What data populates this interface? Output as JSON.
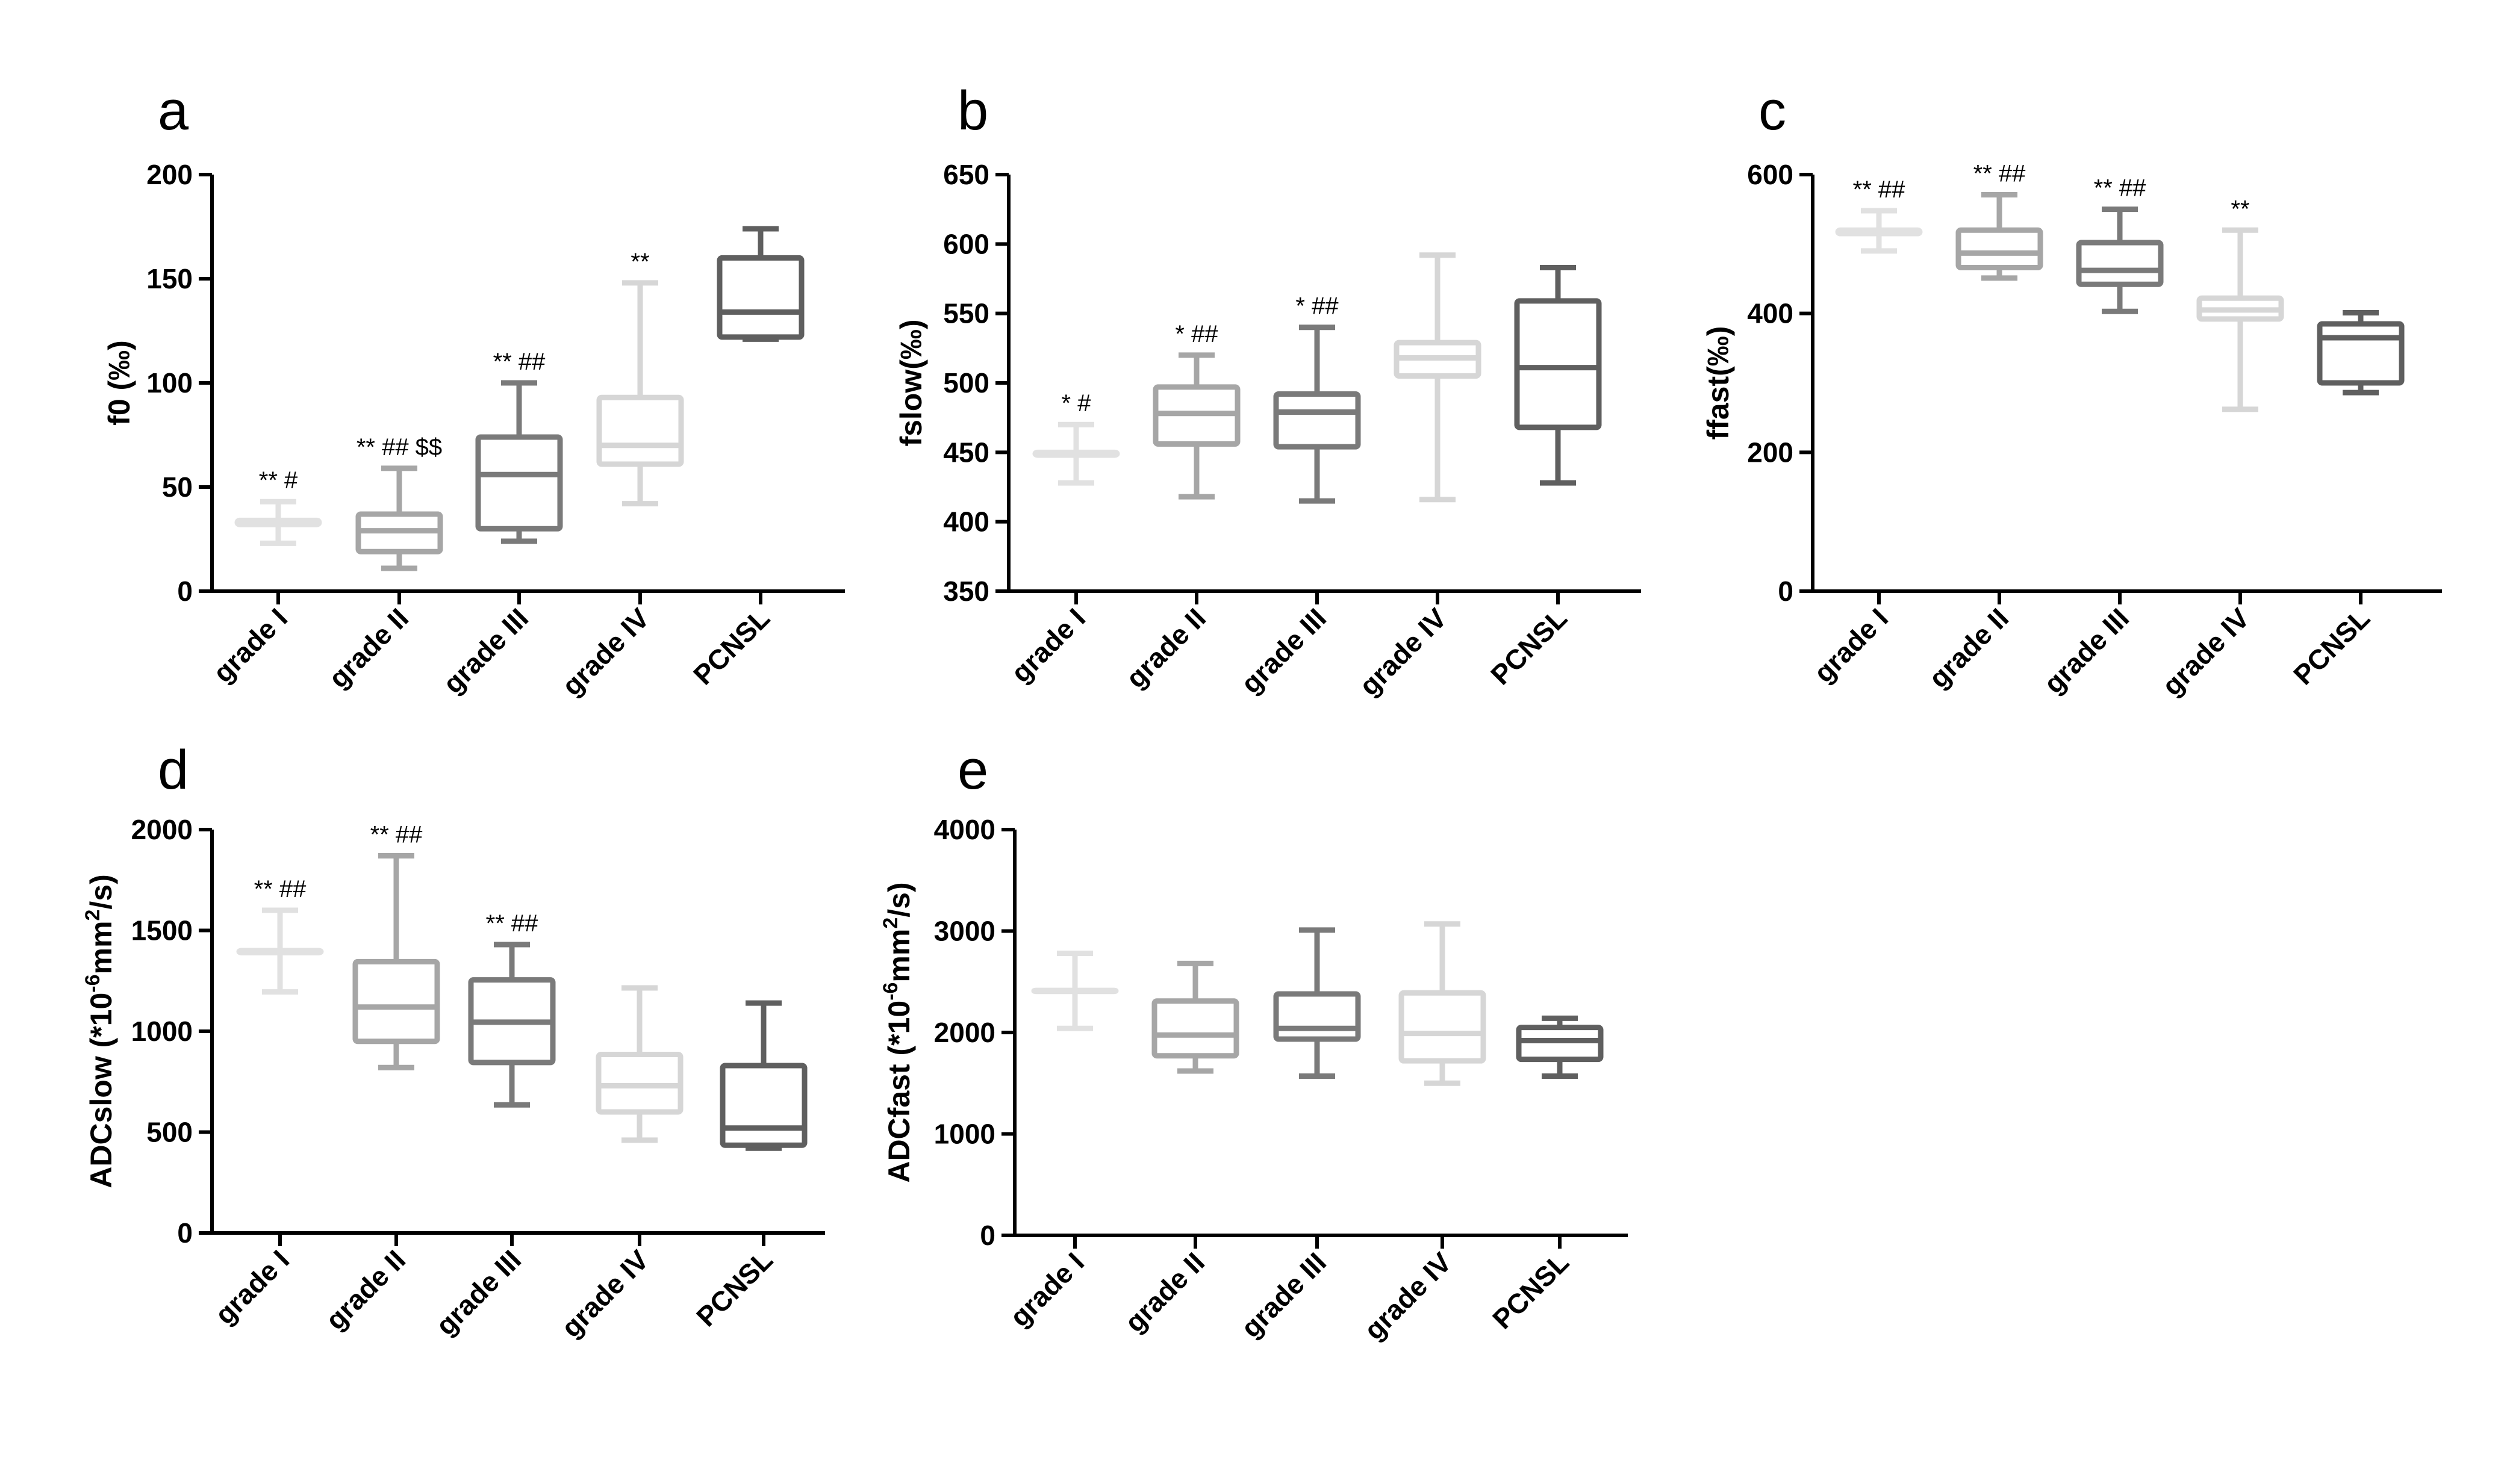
{
  "colors": {
    "c1": "#e1e1e1",
    "c2": "#a6a6a6",
    "c3": "#7a7a7a",
    "c4": "#d6d6d6",
    "c5": "#5f5f5f",
    "axis": "#000000"
  },
  "chart_data": [
    {
      "type": "box",
      "panel": "a",
      "ylabel": "f0 (‰)",
      "ylim": [
        0,
        200
      ],
      "yticks": [
        0,
        50,
        100,
        150,
        200
      ],
      "categories": [
        "grade I",
        "grade II",
        "grade III",
        "grade IV",
        "PCNSL"
      ],
      "series": [
        {
          "name": "grade I",
          "min": 23,
          "q1": 32,
          "median": 33,
          "q3": 34,
          "max": 43,
          "annotation": "** #"
        },
        {
          "name": "grade II",
          "min": 11,
          "q1": 19,
          "median": 29,
          "q3": 37,
          "max": 59,
          "annotation": "** ## $$"
        },
        {
          "name": "grade III",
          "min": 24,
          "q1": 30,
          "median": 56,
          "q3": 74,
          "max": 100,
          "annotation": "** ##"
        },
        {
          "name": "grade IV",
          "min": 42,
          "q1": 61,
          "median": 70,
          "q3": 93,
          "max": 148,
          "annotation": "**"
        },
        {
          "name": "PCNSL",
          "min": 121,
          "q1": 122,
          "median": 134,
          "q3": 160,
          "max": 174,
          "annotation": ""
        }
      ]
    },
    {
      "type": "box",
      "panel": "b",
      "ylabel": "fslow(‰)",
      "ylim": [
        350,
        650
      ],
      "yticks": [
        350,
        400,
        450,
        500,
        550,
        600,
        650
      ],
      "categories": [
        "grade I",
        "grade II",
        "grade III",
        "grade IV",
        "PCNSL"
      ],
      "series": [
        {
          "name": "grade I",
          "min": 428,
          "q1": 448,
          "median": 449,
          "q3": 450,
          "max": 470,
          "annotation": "* #"
        },
        {
          "name": "grade II",
          "min": 418,
          "q1": 456,
          "median": 478,
          "q3": 497,
          "max": 520,
          "annotation": "* ##"
        },
        {
          "name": "grade III",
          "min": 415,
          "q1": 454,
          "median": 479,
          "q3": 492,
          "max": 540,
          "annotation": "* ##"
        },
        {
          "name": "grade IV",
          "min": 416,
          "q1": 505,
          "median": 518,
          "q3": 529,
          "max": 592,
          "annotation": ""
        },
        {
          "name": "PCNSL",
          "min": 428,
          "q1": 468,
          "median": 511,
          "q3": 559,
          "max": 583,
          "annotation": ""
        }
      ]
    },
    {
      "type": "box",
      "panel": "c",
      "ylabel": "ffast(‰)",
      "ylim": [
        0,
        600
      ],
      "yticks": [
        0,
        200,
        400,
        600
      ],
      "categories": [
        "grade I",
        "grade II",
        "grade III",
        "grade IV",
        "PCNSL"
      ],
      "series": [
        {
          "name": "grade I",
          "min": 490,
          "q1": 515,
          "median": 518,
          "q3": 520,
          "max": 548,
          "annotation": "** ##"
        },
        {
          "name": "grade II",
          "min": 451,
          "q1": 466,
          "median": 487,
          "q3": 520,
          "max": 571,
          "annotation": "** ##"
        },
        {
          "name": "grade III",
          "min": 403,
          "q1": 442,
          "median": 462,
          "q3": 502,
          "max": 550,
          "annotation": "** ##"
        },
        {
          "name": "grade IV",
          "min": 262,
          "q1": 392,
          "median": 405,
          "q3": 422,
          "max": 520,
          "annotation": "**"
        },
        {
          "name": "PCNSL",
          "min": 286,
          "q1": 300,
          "median": 365,
          "q3": 385,
          "max": 401,
          "annotation": ""
        }
      ]
    },
    {
      "type": "box",
      "panel": "d",
      "ylabel": "ADCslow (*10",
      "ylabel_sup1": "-6",
      "ylabel_mid": "mm",
      "ylabel_sup2": "2",
      "ylabel_end": "/s)",
      "ylim": [
        0,
        2000
      ],
      "yticks": [
        0,
        500,
        1000,
        1500,
        2000
      ],
      "categories": [
        "grade I",
        "grade II",
        "grade III",
        "grade IV",
        "PCNSL"
      ],
      "series": [
        {
          "name": "grade I",
          "min": 1195,
          "q1": 1390,
          "median": 1395,
          "q3": 1400,
          "max": 1600,
          "annotation": "** ##"
        },
        {
          "name": "grade II",
          "min": 820,
          "q1": 950,
          "median": 1120,
          "q3": 1345,
          "max": 1870,
          "annotation": "** ##"
        },
        {
          "name": "grade III",
          "min": 635,
          "q1": 845,
          "median": 1045,
          "q3": 1255,
          "max": 1430,
          "annotation": "** ##"
        },
        {
          "name": "grade IV",
          "min": 460,
          "q1": 600,
          "median": 730,
          "q3": 885,
          "max": 1215,
          "annotation": ""
        },
        {
          "name": "PCNSL",
          "min": 420,
          "q1": 435,
          "median": 520,
          "q3": 830,
          "max": 1140,
          "annotation": ""
        }
      ]
    },
    {
      "type": "box",
      "panel": "e",
      "ylabel": "ADCfast (*10",
      "ylabel_sup1": "-6",
      "ylabel_mid": "mm",
      "ylabel_sup2": "2",
      "ylabel_end": "/s)",
      "ylim": [
        0,
        4000
      ],
      "yticks": [
        0,
        1000,
        2000,
        3000,
        4000
      ],
      "categories": [
        "grade I",
        "grade II",
        "grade III",
        "grade IV",
        "PCNSL"
      ],
      "series": [
        {
          "name": "grade I",
          "min": 2040,
          "q1": 2405,
          "median": 2410,
          "q3": 2415,
          "max": 2780,
          "annotation": ""
        },
        {
          "name": "grade II",
          "min": 1620,
          "q1": 1770,
          "median": 1975,
          "q3": 2310,
          "max": 2680,
          "annotation": ""
        },
        {
          "name": "grade III",
          "min": 1570,
          "q1": 1935,
          "median": 2040,
          "q3": 2380,
          "max": 3010,
          "annotation": ""
        },
        {
          "name": "grade IV",
          "min": 1500,
          "q1": 1720,
          "median": 1990,
          "q3": 2390,
          "max": 3070,
          "annotation": ""
        },
        {
          "name": "PCNSL",
          "min": 1570,
          "q1": 1735,
          "median": 1920,
          "q3": 2050,
          "max": 2140,
          "annotation": ""
        }
      ]
    }
  ]
}
